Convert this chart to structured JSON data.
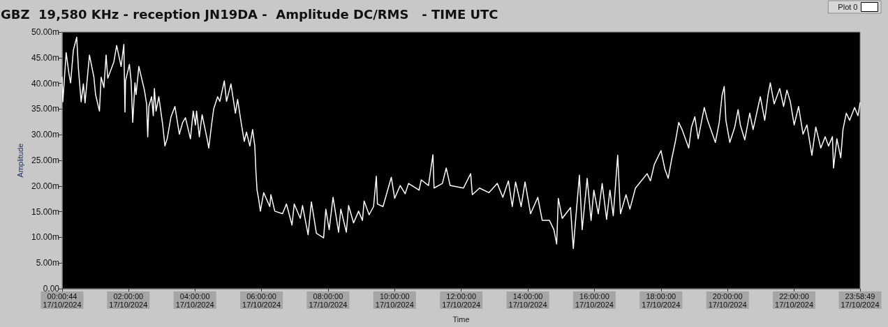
{
  "chart_data": {
    "type": "line",
    "title": "GBZ  19,580 KHz - reception JN19DA -  Amplitude DC/RMS   - TIME UTC",
    "xlabel": "Time",
    "ylabel": "Amplitude",
    "legend": "top right",
    "grid": false,
    "x": [
      "2024-10-17T00:00:44",
      "2024-10-17T00:02",
      "2024-10-17T00:08",
      "2024-10-17T00:13",
      "2024-10-17T00:16",
      "2024-10-17T00:21",
      "2024-10-17T00:27",
      "2024-10-17T00:30",
      "2024-10-17T00:35",
      "2024-10-17T00:39",
      "2024-10-17T00:42",
      "2024-10-17T00:50",
      "2024-10-17T00:58",
      "2024-10-17T01:01",
      "2024-10-17T01:08",
      "2024-10-17T01:11",
      "2024-10-17T01:16",
      "2024-10-17T01:20",
      "2024-10-17T01:23",
      "2024-10-17T01:34",
      "2024-10-17T01:39",
      "2024-10-17T01:47",
      "2024-10-17T01:52",
      "2024-10-17T01:54",
      "2024-10-17T01:55",
      "2024-10-17T02:02",
      "2024-10-17T02:05",
      "2024-10-17T02:08",
      "2024-10-17T02:12",
      "2024-10-17T02:14",
      "2024-10-17T02:19",
      "2024-10-17T02:29",
      "2024-10-17T02:33",
      "2024-10-17T02:35",
      "2024-10-17T02:37",
      "2024-10-17T02:42",
      "2024-10-17T02:45",
      "2024-10-17T02:47",
      "2024-10-17T02:50",
      "2024-10-17T02:55",
      "2024-10-17T03:02",
      "2024-10-17T03:06",
      "2024-10-17T03:10",
      "2024-10-17T03:17",
      "2024-10-17T03:24",
      "2024-10-17T03:32",
      "2024-10-17T03:38",
      "2024-10-17T03:43",
      "2024-10-17T03:52",
      "2024-10-17T03:57",
      "2024-10-17T04:01",
      "2024-10-17T04:03",
      "2024-10-17T04:08",
      "2024-10-17T04:13",
      "2024-10-17T04:22",
      "2024-10-17T04:25",
      "2024-10-17T04:30",
      "2024-10-17T04:34",
      "2024-10-17T04:41",
      "2024-10-17T04:45",
      "2024-10-17T04:53",
      "2024-10-17T04:57",
      "2024-10-17T05:05",
      "2024-10-17T05:13",
      "2024-10-17T05:17",
      "2024-10-17T05:24",
      "2024-10-17T05:29",
      "2024-10-17T05:33",
      "2024-10-17T05:39",
      "2024-10-17T05:44",
      "2024-10-17T05:48",
      "2024-10-17T05:50",
      "2024-10-17T05:52",
      "2024-10-17T05:55",
      "2024-10-17T05:58",
      "2024-10-17T06:04",
      "2024-10-17T06:15",
      "2024-10-17T06:17",
      "2024-10-17T06:24",
      "2024-10-17T06:38",
      "2024-10-17T06:45",
      "2024-10-17T06:55",
      "2024-10-17T06:59",
      "2024-10-17T07:10",
      "2024-10-17T07:14",
      "2024-10-17T07:24",
      "2024-10-17T07:30",
      "2024-10-17T07:39",
      "2024-10-17T07:52",
      "2024-10-17T07:56",
      "2024-10-17T08:02",
      "2024-10-17T08:09",
      "2024-10-17T08:19",
      "2024-10-17T08:23",
      "2024-10-17T08:33",
      "2024-10-17T08:37",
      "2024-10-17T08:46",
      "2024-10-17T08:55",
      "2024-10-17T09:02",
      "2024-10-17T09:05",
      "2024-10-17T09:14",
      "2024-10-17T09:22",
      "2024-10-17T09:27",
      "2024-10-17T09:29",
      "2024-10-17T09:39",
      "2024-10-17T09:54",
      "2024-10-17T10:00",
      "2024-10-17T10:10",
      "2024-10-17T10:19",
      "2024-10-17T10:25",
      "2024-10-17T10:44",
      "2024-10-17T10:48",
      "2024-10-17T11:01",
      "2024-10-17T11:09",
      "2024-10-17T11:11",
      "2024-10-17T11:26",
      "2024-10-17T11:33",
      "2024-10-17T11:40",
      "2024-10-17T12:04",
      "2024-10-17T12:17",
      "2024-10-17T12:20",
      "2024-10-17T12:33",
      "2024-10-17T12:50",
      "2024-10-17T13:05",
      "2024-10-17T13:15",
      "2024-10-17T13:25",
      "2024-10-17T13:32",
      "2024-10-17T13:38",
      "2024-10-17T13:48",
      "2024-10-17T13:55",
      "2024-10-17T14:05",
      "2024-10-17T14:18",
      "2024-10-17T14:26",
      "2024-10-17T14:39",
      "2024-10-17T14:47",
      "2024-10-17T14:52",
      "2024-10-17T14:55",
      "2024-10-17T15:02",
      "2024-10-17T15:17",
      "2024-10-17T15:22",
      "2024-10-17T15:25",
      "2024-10-17T15:33",
      "2024-10-17T15:38",
      "2024-10-17T15:47",
      "2024-10-17T15:54",
      "2024-10-17T15:59",
      "2024-10-17T16:07",
      "2024-10-17T16:14",
      "2024-10-17T16:22",
      "2024-10-17T16:28",
      "2024-10-17T16:34",
      "2024-10-17T16:42",
      "2024-10-17T16:47",
      "2024-10-17T16:57",
      "2024-10-17T17:04",
      "2024-10-17T17:14",
      "2024-10-17T17:35",
      "2024-10-17T17:41",
      "2024-10-17T17:48",
      "2024-10-17T18:00",
      "2024-10-17T18:07",
      "2024-10-17T18:13",
      "2024-10-17T18:19",
      "2024-10-17T18:26",
      "2024-10-17T18:32",
      "2024-10-17T18:38",
      "2024-10-17T18:50",
      "2024-10-17T18:55",
      "2024-10-17T19:01",
      "2024-10-17T19:07",
      "2024-10-17T19:18",
      "2024-10-17T19:24",
      "2024-10-17T19:38",
      "2024-10-17T19:45",
      "2024-10-17T19:50",
      "2024-10-17T19:54",
      "2024-10-17T19:57",
      "2024-10-17T20:04",
      "2024-10-17T20:13",
      "2024-10-17T20:19",
      "2024-10-17T20:23",
      "2024-10-17T20:31",
      "2024-10-17T20:40",
      "2024-10-17T20:46",
      "2024-10-17T20:59",
      "2024-10-17T21:07",
      "2024-10-17T21:13",
      "2024-10-17T21:17",
      "2024-10-17T21:24",
      "2024-10-17T21:34",
      "2024-10-17T21:41",
      "2024-10-17T21:47",
      "2024-10-17T21:53",
      "2024-10-17T22:00",
      "2024-10-17T22:08",
      "2024-10-17T22:16",
      "2024-10-17T22:23",
      "2024-10-17T22:32",
      "2024-10-17T22:39",
      "2024-10-17T22:48",
      "2024-10-17T22:56",
      "2024-10-17T23:02",
      "2024-10-17T23:09",
      "2024-10-17T23:11",
      "2024-10-17T23:17",
      "2024-10-17T23:24",
      "2024-10-17T23:28",
      "2024-10-17T23:34",
      "2024-10-17T23:40",
      "2024-10-17T23:49",
      "2024-10-17T23:55",
      "2024-10-17T23:58:49"
    ],
    "series": [
      {
        "name": "Plot 0",
        "color": "#ffffff",
        "values": [
          41.2,
          36.4,
          46.0,
          41.9,
          40.1,
          46.5,
          49.0,
          43.0,
          36.4,
          39.9,
          36.2,
          45.5,
          41.2,
          37.8,
          34.6,
          41.2,
          39.2,
          45.5,
          41.0,
          44.2,
          47.4,
          43.3,
          47.6,
          34.4,
          40.5,
          43.7,
          40.5,
          32.4,
          40.1,
          37.8,
          43.3,
          38.7,
          36.0,
          29.6,
          35.5,
          37.4,
          33.7,
          39.0,
          34.6,
          37.4,
          31.9,
          27.8,
          29.2,
          33.5,
          35.5,
          30.1,
          32.4,
          33.3,
          29.2,
          34.6,
          31.9,
          34.6,
          29.6,
          33.9,
          29.2,
          27.4,
          31.9,
          35.1,
          37.4,
          36.5,
          40.5,
          36.5,
          39.9,
          34.2,
          36.9,
          31.9,
          28.7,
          30.5,
          27.8,
          31.0,
          27.8,
          22.8,
          19.2,
          17.4,
          15.1,
          18.7,
          16.0,
          18.3,
          15.1,
          14.6,
          16.5,
          12.4,
          16.5,
          13.7,
          16.2,
          10.5,
          16.9,
          10.8,
          9.9,
          15.5,
          11.5,
          17.8,
          11.0,
          15.5,
          11.0,
          16.2,
          12.8,
          15.1,
          13.3,
          17.1,
          14.4,
          16.0,
          21.9,
          16.5,
          16.0,
          21.7,
          17.6,
          20.1,
          18.5,
          20.5,
          19.2,
          21.2,
          20.1,
          26.1,
          19.6,
          20.5,
          23.5,
          20.1,
          19.6,
          22.4,
          18.3,
          19.6,
          18.7,
          20.5,
          17.8,
          21.0,
          16.0,
          20.8,
          16.0,
          20.8,
          14.6,
          17.8,
          13.3,
          13.3,
          11.5,
          8.7,
          17.6,
          13.7,
          15.8,
          7.8,
          11.9,
          22.1,
          11.5,
          21.5,
          13.3,
          19.2,
          14.6,
          20.5,
          13.5,
          19.2,
          14.2,
          26.0,
          14.6,
          18.3,
          15.5,
          19.6,
          22.4,
          21.0,
          24.2,
          26.9,
          23.3,
          21.5,
          25.1,
          28.7,
          32.4,
          31.0,
          27.4,
          31.5,
          33.5,
          29.2,
          35.3,
          32.8,
          28.5,
          32.4,
          37.6,
          39.4,
          32.8,
          28.5,
          31.5,
          34.9,
          31.9,
          29.0,
          34.2,
          31.0,
          37.4,
          32.8,
          37.8,
          40.1,
          36.0,
          39.0,
          35.5,
          38.7,
          36.5,
          31.9,
          35.5,
          30.1,
          31.9,
          26.0,
          31.5,
          27.4,
          29.6,
          27.8,
          29.6,
          23.5,
          29.2,
          25.5,
          31.0,
          34.2,
          32.8,
          35.3,
          33.7,
          36.2
        ]
      }
    ],
    "xlim": [
      "2024-10-17T00:00:44",
      "2024-10-17T23:58:49"
    ],
    "xticks": [
      {
        "value": "2024-10-17T00:00:44",
        "label": "00:00:44\n17/10/2024"
      },
      {
        "value": "2024-10-17T02:00",
        "label": "02:00:00\n17/10/2024"
      },
      {
        "value": "2024-10-17T04:00",
        "label": "04:00:00\n17/10/2024"
      },
      {
        "value": "2024-10-17T06:00",
        "label": "06:00:00\n17/10/2024"
      },
      {
        "value": "2024-10-17T08:00",
        "label": "08:00:00\n17/10/2024"
      },
      {
        "value": "2024-10-17T10:00",
        "label": "10:00:00\n17/10/2024"
      },
      {
        "value": "2024-10-17T12:00",
        "label": "12:00:00\n17/10/2024"
      },
      {
        "value": "2024-10-17T14:00",
        "label": "14:00:00\n17/10/2024"
      },
      {
        "value": "2024-10-17T16:00",
        "label": "16:00:00\n17/10/2024"
      },
      {
        "value": "2024-10-17T18:00",
        "label": "18:00:00\n17/10/2024"
      },
      {
        "value": "2024-10-17T20:00",
        "label": "20:00:00\n17/10/2024"
      },
      {
        "value": "2024-10-17T22:00",
        "label": "22:00:00\n17/10/2024"
      },
      {
        "value": "2024-10-17T23:58:49",
        "label": "23:58:49\n17/10/2024"
      }
    ],
    "ylim": [
      0,
      50
    ],
    "yticks": [
      {
        "value": 0,
        "label": "0.00"
      },
      {
        "value": 5,
        "label": "5.00m"
      },
      {
        "value": 10,
        "label": "10.00m"
      },
      {
        "value": 15,
        "label": "15.00m"
      },
      {
        "value": 20,
        "label": "20.00m"
      },
      {
        "value": 25,
        "label": "25.00m"
      },
      {
        "value": 30,
        "label": "30.00m"
      },
      {
        "value": 35,
        "label": "35.00m"
      },
      {
        "value": 40,
        "label": "40.00m"
      },
      {
        "value": 45,
        "label": "45.00m"
      },
      {
        "value": 50,
        "label": "50.00m"
      }
    ]
  }
}
